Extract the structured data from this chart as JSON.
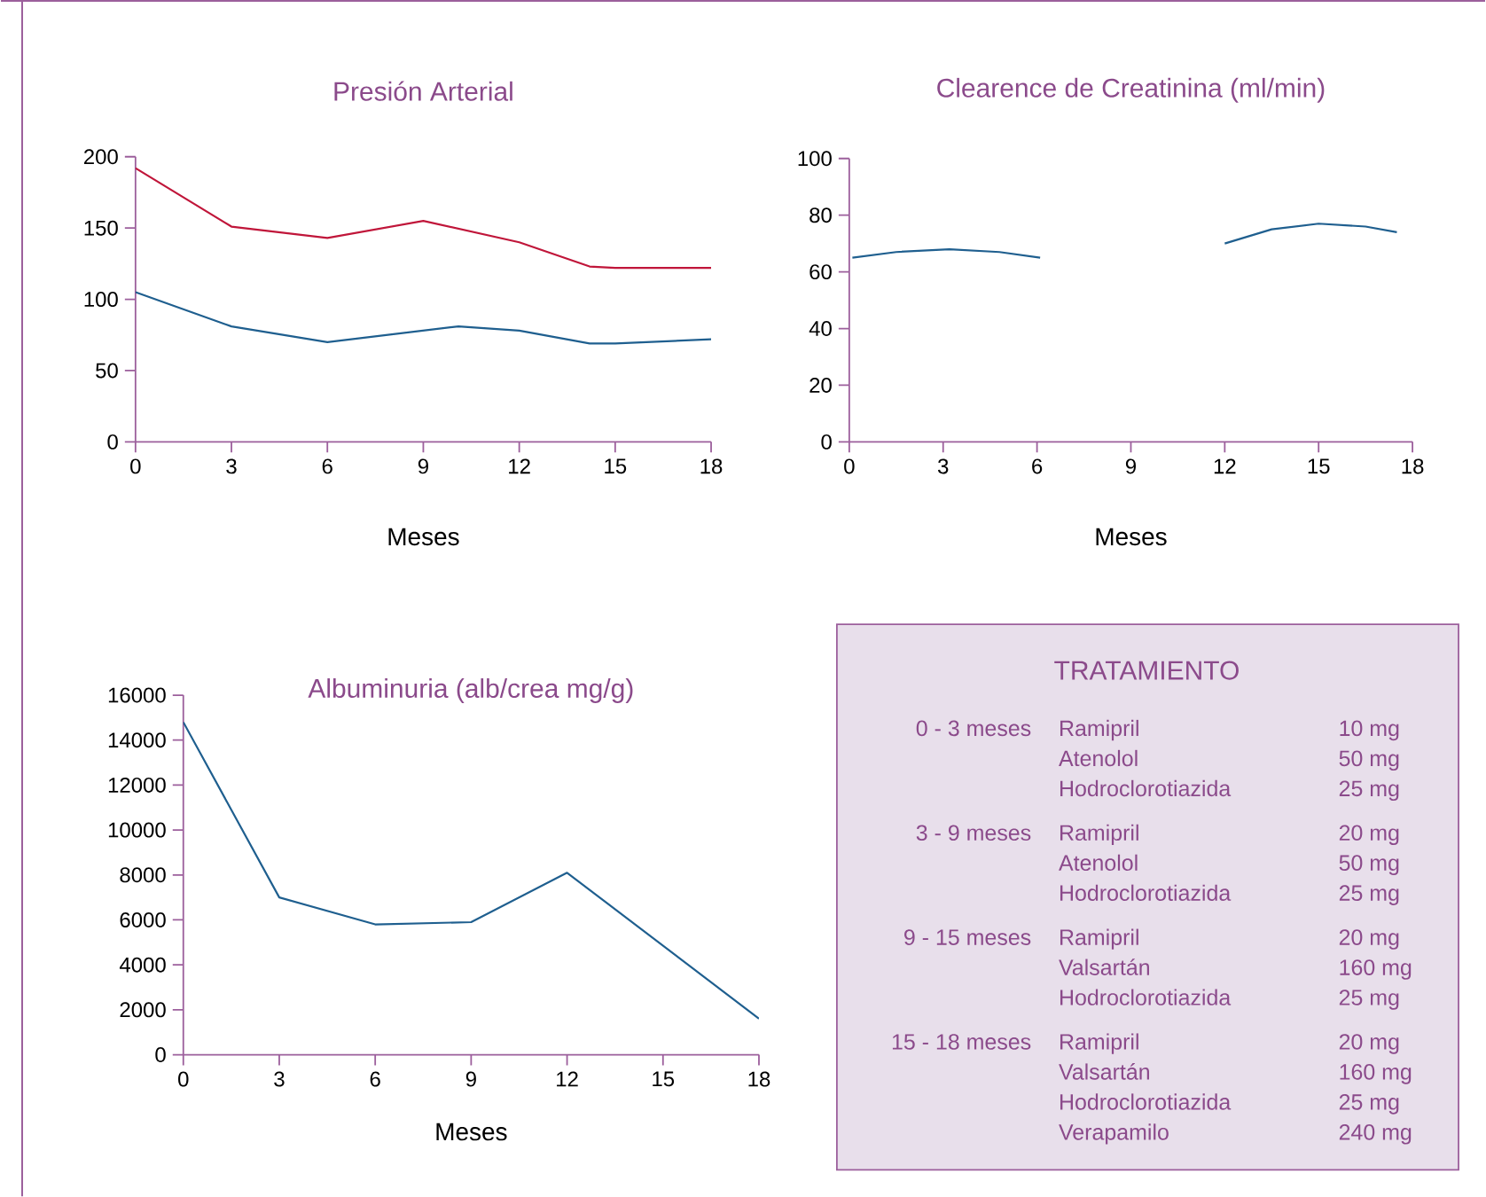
{
  "chart_data": [
    {
      "type": "line",
      "title": "Presión Arterial",
      "xlabel": "Meses",
      "xlim": [
        0,
        18
      ],
      "xticks": [
        0,
        3,
        6,
        9,
        12,
        15,
        18
      ],
      "ylim": [
        0,
        200
      ],
      "yticks": [
        0,
        50,
        100,
        150,
        200
      ],
      "series": [
        {
          "color": "#c0163a",
          "x": [
            0,
            3,
            6,
            9,
            12,
            14.2,
            15,
            18
          ],
          "values": [
            192,
            151,
            143,
            155,
            140,
            123,
            122,
            122
          ]
        },
        {
          "color": "#1f5f8f",
          "x": [
            0,
            3,
            6,
            10.1,
            12,
            14.2,
            15,
            18
          ],
          "values": [
            105,
            81,
            70,
            81,
            78,
            69,
            69,
            72
          ]
        }
      ]
    },
    {
      "type": "line",
      "title": "Clearence de Creatinina (ml/min)",
      "xlabel": "Meses",
      "xlim": [
        0,
        18
      ],
      "xticks": [
        0,
        3,
        6,
        9,
        12,
        15,
        18
      ],
      "ylim": [
        0,
        100
      ],
      "yticks": [
        0,
        20,
        40,
        60,
        80,
        100
      ],
      "series": [
        {
          "color": "#1f5f8f",
          "x": [
            0.1,
            1.5,
            3.2,
            4.8,
            6.1,
            9,
            12,
            13.5,
            15,
            16.5,
            17.5
          ],
          "values": [
            65,
            67,
            68,
            67,
            65,
            null,
            70,
            75,
            77,
            76,
            74
          ]
        }
      ]
    },
    {
      "type": "line",
      "title": "Albuminuria (alb/crea mg/g)",
      "xlabel": "Meses",
      "xlim": [
        0,
        18
      ],
      "xticks": [
        0,
        3,
        6,
        9,
        12,
        15,
        18
      ],
      "ylim": [
        0,
        16000
      ],
      "yticks": [
        0,
        2000,
        4000,
        6000,
        8000,
        10000,
        12000,
        14000,
        16000
      ],
      "series": [
        {
          "color": "#1f5f8f",
          "x": [
            0,
            3,
            6,
            9,
            12,
            18
          ],
          "values": [
            14800,
            7000,
            5800,
            5900,
            8100,
            1600
          ]
        }
      ]
    },
    {
      "type": "other",
      "title": "TRATAMIENTO",
      "cell_labels": [
        [
          "0 - 3 meses",
          "Ramipril",
          "10 mg"
        ],
        [
          null,
          "Atenolol",
          "50 mg"
        ],
        [
          null,
          "Hodroclorotiazida",
          "25 mg"
        ],
        [
          "3 - 9 meses",
          "Ramipril",
          "20 mg"
        ],
        [
          null,
          "Atenolol",
          "50 mg"
        ],
        [
          null,
          "Hodroclorotiazida",
          "25 mg"
        ],
        [
          "9 - 15 meses",
          "Ramipril",
          "20 mg"
        ],
        [
          null,
          "Valsartán",
          "160 mg"
        ],
        [
          null,
          "Hodroclorotiazida",
          "25 mg"
        ],
        [
          "15 - 18 meses",
          "Ramipril",
          "20 mg"
        ],
        [
          null,
          "Valsartán",
          "160 mg"
        ],
        [
          null,
          "Hodroclorotiazida",
          "25 mg"
        ],
        [
          null,
          "Verapamilo",
          "240 mg"
        ]
      ]
    }
  ]
}
